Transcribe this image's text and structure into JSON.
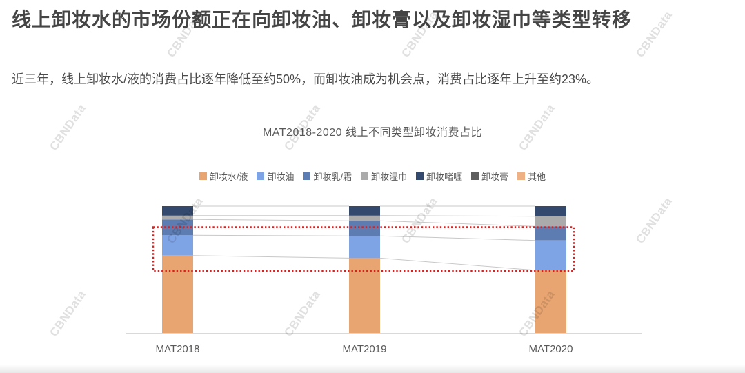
{
  "watermark": {
    "text": "CBNData"
  },
  "header": {
    "title": "线上卸妆水的市场份额正在向卸妆油、卸妆膏以及卸妆湿巾等类型转移",
    "subtitle": "近三年，线上卸妆水/液的消费占比逐年降低至约50%，而卸妆油成为机会点，消费占比逐年上升至约23%。"
  },
  "chart_data": {
    "type": "bar",
    "stacked": true,
    "title": "MAT2018-2020 线上不同类型卸妆消费占比",
    "categories": [
      "MAT2018",
      "MAT2019",
      "MAT2020"
    ],
    "value_unit": "share_percent",
    "ylim": [
      0,
      100
    ],
    "grid": false,
    "legend_position": "top",
    "series": [
      {
        "name": "卸妆水/液",
        "color": "#E9A571",
        "values": [
          61,
          59,
          49.5
        ]
      },
      {
        "name": "卸妆油",
        "color": "#7FA4E6",
        "values": [
          16,
          17.5,
          23.5
        ]
      },
      {
        "name": "卸妆乳/霜",
        "color": "#5C7CB2",
        "values": [
          12.5,
          12,
          11
        ]
      },
      {
        "name": "卸妆湿巾",
        "color": "#ABABAB",
        "values": [
          3,
          4,
          8
        ]
      },
      {
        "name": "卸妆啫喱",
        "color": "#33496E",
        "values": [
          7.5,
          7.5,
          8
        ]
      },
      {
        "name": "卸妆膏",
        "color": "#5E5E5E",
        "values": [
          0,
          0,
          0
        ]
      },
      {
        "name": "其他",
        "color": "#EDB183",
        "values": [
          0,
          0,
          0
        ]
      }
    ],
    "annotations": [
      {
        "type": "highlight-rect",
        "style": "red-dotted",
        "color": "#E11E1E",
        "note": "band highlighting the 卸妆油 share across MAT2018-MAT2020"
      }
    ]
  }
}
